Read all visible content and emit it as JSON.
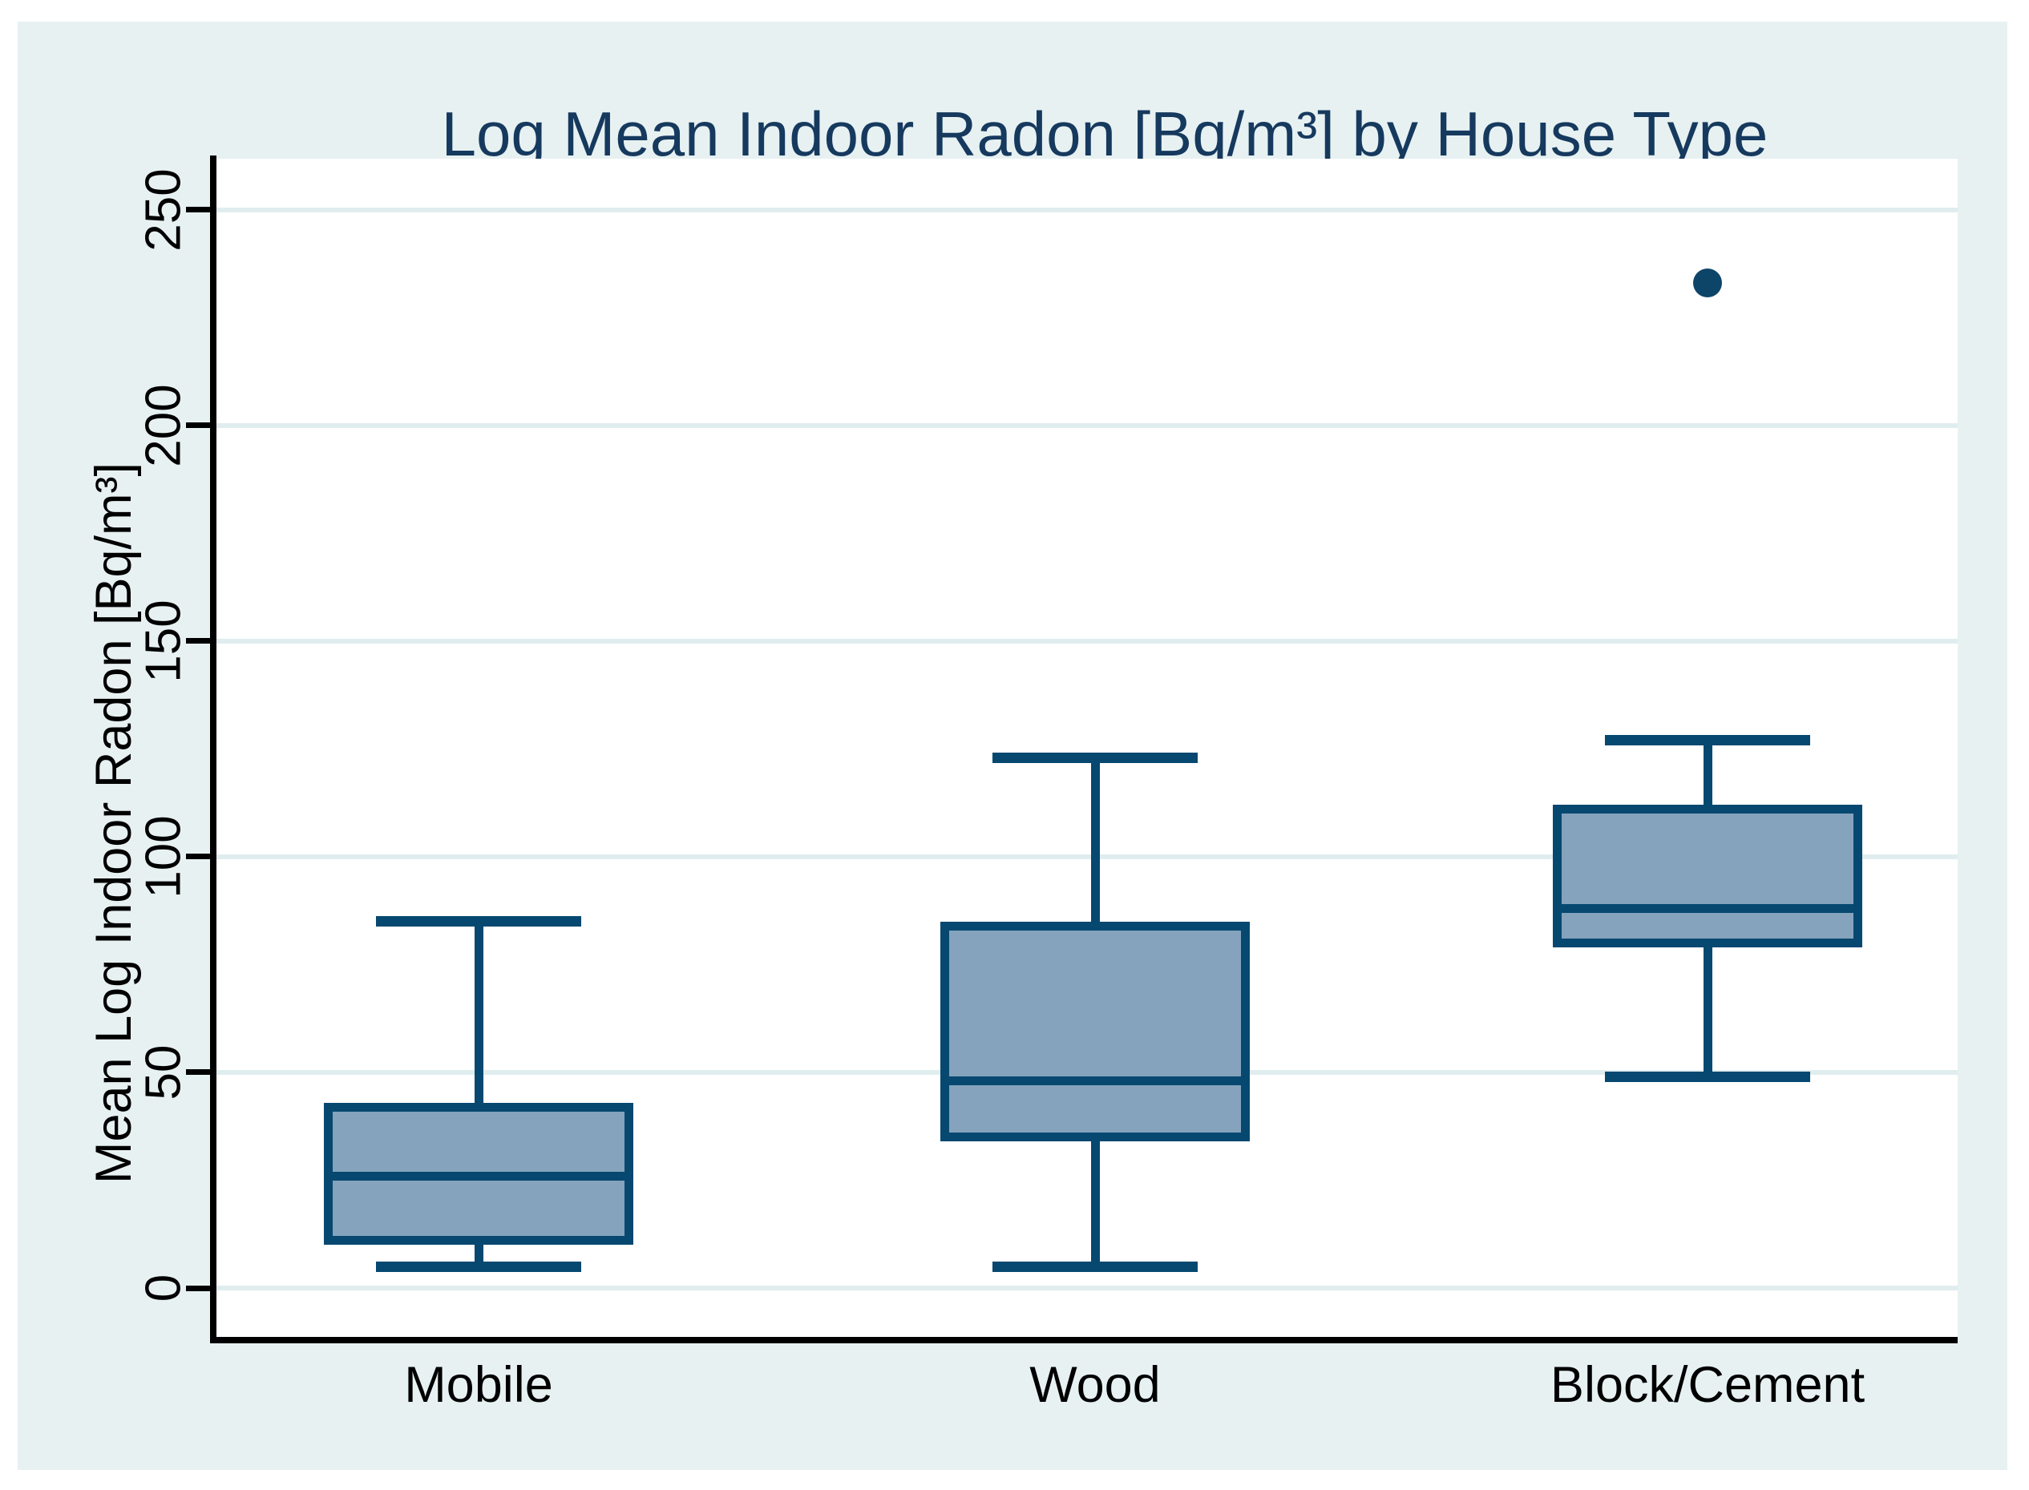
{
  "title": "Log Mean Indoor Radon [Bq/m³] by House Type",
  "y_axis": {
    "label": "Mean Log Indoor Radon [Bq/m³]",
    "tick_labels": [
      "0",
      "50",
      "100",
      "150",
      "200",
      "250"
    ]
  },
  "x_axis": {
    "categories": [
      "Mobile",
      "Wood",
      "Block/Cement"
    ]
  },
  "chart_data": {
    "type": "box",
    "title": "Log Mean Indoor Radon [Bq/m³] by House Type",
    "xlabel": "",
    "ylabel": "Mean Log Indoor Radon [Bq/m³]",
    "categories": [
      "Mobile",
      "Wood",
      "Block/Cement"
    ],
    "series": [
      {
        "name": "Mobile",
        "whisker_low": 5,
        "q1": 10,
        "median": 26,
        "q3": 43,
        "whisker_high": 85,
        "outliers": []
      },
      {
        "name": "Wood",
        "whisker_low": 5,
        "q1": 34,
        "median": 48,
        "q3": 85,
        "whisker_high": 123,
        "outliers": []
      },
      {
        "name": "Block/Cement",
        "whisker_low": 49,
        "q1": 79,
        "median": 88,
        "q3": 112,
        "whisker_high": 127,
        "outliers": [
          233
        ]
      }
    ],
    "yticks": [
      0,
      50,
      100,
      150,
      200,
      250
    ],
    "ylim": [
      -11,
      262
    ],
    "grid": true,
    "legend": "none",
    "colors": {
      "box_fill": "#85A3BC",
      "box_border": "#064870",
      "whisker": "#064870",
      "outlier": "#0D4568",
      "gridline": "#E0EDEF",
      "plot_background": "#FFFFFF",
      "graph_background": "#E7F1F2",
      "title_color": "#16395E",
      "axis_color": "#000000"
    }
  }
}
